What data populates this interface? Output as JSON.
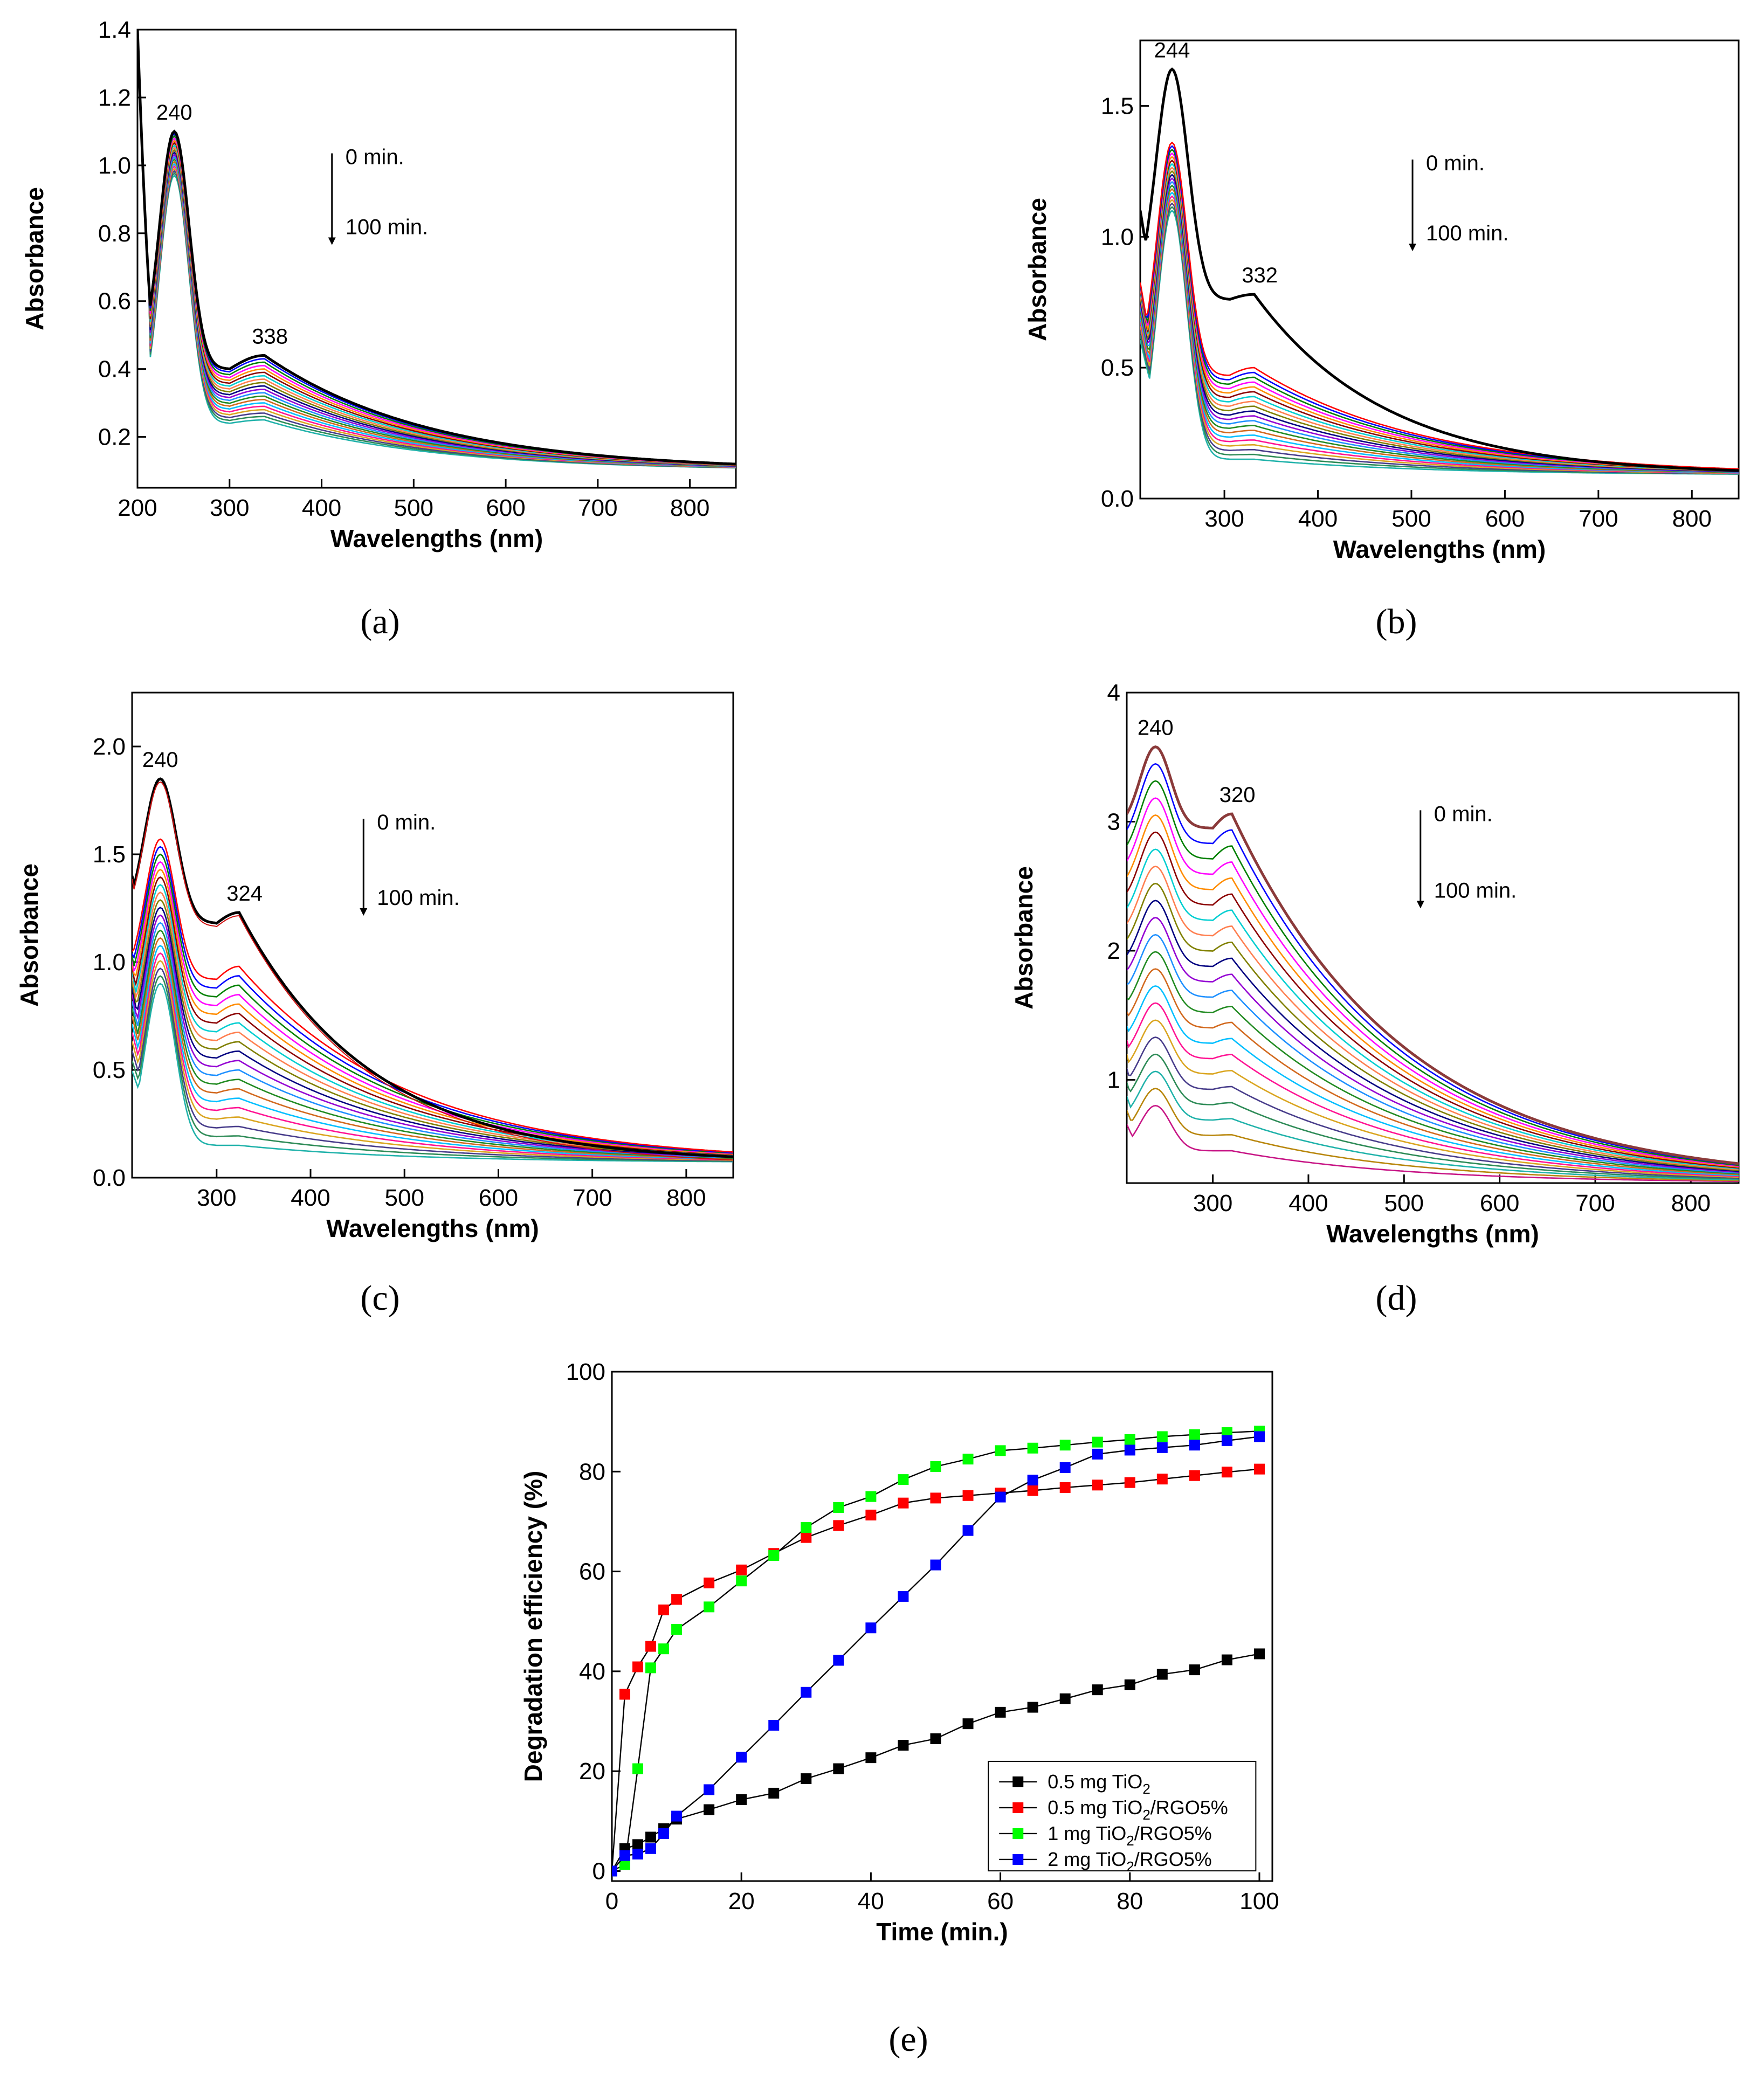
{
  "chart_data": [
    {
      "id": "a",
      "type": "line",
      "panel_label": "(a)",
      "xlabel": "Wavelengths (nm)",
      "ylabel": "Absorbance",
      "xlim": [
        200,
        850
      ],
      "ylim": [
        0.05,
        1.4
      ],
      "xticks": [
        200,
        300,
        400,
        500,
        600,
        700,
        800
      ],
      "yticks": [
        0.2,
        0.4,
        0.6,
        0.8,
        1.0,
        1.2,
        1.4
      ],
      "ytick_labels": [
        "0.2",
        "0.4",
        "0.6",
        "0.8",
        "1.0",
        "1.2",
        "1.4"
      ],
      "peaks": [
        {
          "label": "240",
          "x": 240
        },
        {
          "label": "338",
          "x": 338
        }
      ],
      "arrow": {
        "top": "0 min.",
        "bottom": "100 min."
      },
      "curve_params": {
        "series": 20,
        "peak1": {
          "x": 240,
          "start": 1.1,
          "end": 0.97
        },
        "peak2": {
          "x": 338,
          "start": 0.44,
          "end": 0.25
        },
        "valley": {
          "x": 300,
          "start": 0.4,
          "end": 0.24
        },
        "dip": {
          "x": 212,
          "value": 0.6
        },
        "end_value": 0.1,
        "edge": {
          "x": 200,
          "value": 1.4
        }
      }
    },
    {
      "id": "b",
      "type": "line",
      "panel_label": "(b)",
      "xlabel": "Wavelengths (nm)",
      "ylabel": "Absorbance",
      "xlim": [
        210,
        850
      ],
      "ylim": [
        0.0,
        1.75
      ],
      "xticks": [
        300,
        400,
        500,
        600,
        700,
        800
      ],
      "yticks": [
        0.0,
        0.5,
        1.0,
        1.5
      ],
      "ytick_labels": [
        "0.0",
        "0.5",
        "1.0",
        "1.5"
      ],
      "peaks": [
        {
          "label": "244",
          "x": 244
        },
        {
          "label": "332",
          "x": 332
        }
      ],
      "arrow": {
        "top": "0 min.",
        "bottom": "100 min."
      },
      "curve_params": {
        "series": 20,
        "first_curve": {
          "peak1": 1.64,
          "peak2": 0.78,
          "valley": 0.76,
          "start": 1.1
        },
        "peak1": {
          "x": 244,
          "start": 1.36,
          "end": 1.1
        },
        "peak2": {
          "x": 332,
          "start": 0.5,
          "end": 0.15
        },
        "valley": {
          "x": 305,
          "start": 0.47,
          "end": 0.15
        },
        "end_value": 0.09
      }
    },
    {
      "id": "c",
      "type": "line",
      "panel_label": "(c)",
      "xlabel": "Wavelengths (nm)",
      "ylabel": "Absorbance",
      "xlim": [
        210,
        850
      ],
      "ylim": [
        0.0,
        2.25
      ],
      "xticks": [
        300,
        400,
        500,
        600,
        700,
        800
      ],
      "yticks": [
        0.0,
        0.5,
        1.0,
        1.5,
        2.0
      ],
      "ytick_labels": [
        "0.0",
        "0.5",
        "1.0",
        "1.5",
        "2.0"
      ],
      "peaks": [
        {
          "label": "240",
          "x": 240
        },
        {
          "label": "324",
          "x": 324
        }
      ],
      "arrow": {
        "top": "0 min.",
        "bottom": "100 min."
      },
      "curve_params": {
        "series": 20,
        "first_curve": {
          "peak1": 1.85,
          "peak2": 1.23,
          "valley": 1.18,
          "start": 1.4
        },
        "peak1": {
          "x": 240,
          "start": 1.57,
          "end": 0.9
        },
        "peak2": {
          "x": 324,
          "start": 0.98,
          "end": 0.15
        },
        "valley": {
          "x": 300,
          "start": 0.92,
          "end": 0.15
        },
        "end_value": 0.07
      }
    },
    {
      "id": "d",
      "type": "line",
      "panel_label": "(d)",
      "xlabel": "Wavelengths (nm)",
      "ylabel": "Absorbance",
      "xlim": [
        210,
        850
      ],
      "ylim": [
        0.2,
        4.0
      ],
      "xticks": [
        300,
        400,
        500,
        600,
        700,
        800
      ],
      "yticks": [
        1,
        2,
        3,
        4
      ],
      "ytick_labels": [
        "1",
        "2",
        "3",
        "4"
      ],
      "peaks": [
        {
          "label": "240",
          "x": 240
        },
        {
          "label": "320",
          "x": 320
        }
      ],
      "arrow": {
        "top": "0 min.",
        "bottom": "100 min."
      },
      "curve_params": {
        "series": 22,
        "peak1": {
          "x": 240,
          "start": 3.58,
          "end": 0.8
        },
        "peak2": {
          "x": 320,
          "start": 3.06,
          "end": 0.45
        },
        "valley": {
          "x": 300,
          "start": 2.95,
          "end": 0.45
        },
        "end_value": 0.2
      }
    },
    {
      "id": "e",
      "type": "line",
      "panel_label": "(e)",
      "xlabel": "Time (min.)",
      "ylabel": "Degradation efficiency (%)",
      "xlim": [
        0,
        102
      ],
      "ylim": [
        -2,
        100
      ],
      "xticks": [
        0,
        20,
        40,
        60,
        80,
        100
      ],
      "yticks": [
        0,
        20,
        40,
        60,
        80,
        100
      ],
      "ytick_labels": [
        "0",
        "20",
        "40",
        "60",
        "80",
        "100"
      ],
      "x": [
        0,
        2,
        4,
        6,
        8,
        10,
        15,
        20,
        25,
        30,
        35,
        40,
        45,
        50,
        55,
        60,
        65,
        70,
        75,
        80,
        85,
        90,
        95,
        100
      ],
      "series": [
        {
          "name": "0.5 mg TiO2",
          "label_main": "0.5 mg TiO",
          "label_sub": "2",
          "label_tail": "",
          "color": "#000000",
          "values": [
            0,
            4.5,
            5.3,
            6.8,
            8.5,
            10.4,
            12.3,
            14.3,
            15.6,
            18.5,
            20.5,
            22.7,
            25.2,
            26.5,
            29.5,
            31.8,
            32.8,
            34.5,
            36.3,
            37.3,
            39.4,
            40.3,
            42.3,
            43.5
          ]
        },
        {
          "name": "0.5 mg TiO2/RGO5%",
          "label_main": "0.5 mg TiO",
          "label_sub": "2",
          "label_tail": "/RGO5%",
          "color": "#ff0000",
          "values": [
            0,
            35.4,
            40.9,
            45,
            52.3,
            54.4,
            57.7,
            60.3,
            63.6,
            66.8,
            69.2,
            71.3,
            73.7,
            74.7,
            75.2,
            75.7,
            76.2,
            76.8,
            77.3,
            77.8,
            78.5,
            79.2,
            79.9,
            80.5
          ]
        },
        {
          "name": "1 mg TiO2/RGO5%",
          "label_main": "1 mg TiO",
          "label_sub": "2",
          "label_tail": "/RGO5%",
          "color": "#00ff00",
          "values": [
            0,
            1.3,
            20.5,
            40.7,
            44.5,
            48.4,
            52.9,
            58.1,
            63.2,
            68.8,
            72.8,
            75,
            78.4,
            81,
            82.5,
            84.2,
            84.7,
            85.3,
            85.9,
            86.4,
            87,
            87.4,
            87.8,
            88.1
          ]
        },
        {
          "name": "2 mg TiO2/RGO5%",
          "label_main": "2 mg TiO",
          "label_sub": "2",
          "label_tail": "/RGO5%",
          "color": "#0000ff",
          "values": [
            0,
            3.1,
            3.4,
            4.5,
            7.5,
            11,
            16.3,
            22.8,
            29.2,
            35.8,
            42.2,
            48.7,
            55,
            61.3,
            68.2,
            74.9,
            78.3,
            80.8,
            83.5,
            84.3,
            84.8,
            85.3,
            86.2,
            87
          ]
        }
      ]
    }
  ],
  "palette": [
    "#ff0000",
    "#0000ff",
    "#008000",
    "#ff00ff",
    "#ff8c00",
    "#8b0000",
    "#00ced1",
    "#ff7f50",
    "#808000",
    "#000080",
    "#9400d3",
    "#1e90ff",
    "#228b22",
    "#d2691e",
    "#00bfff",
    "#ff1493",
    "#daa520",
    "#483d8b",
    "#2e8b57",
    "#20b2aa",
    "#b8860b",
    "#c71585"
  ]
}
